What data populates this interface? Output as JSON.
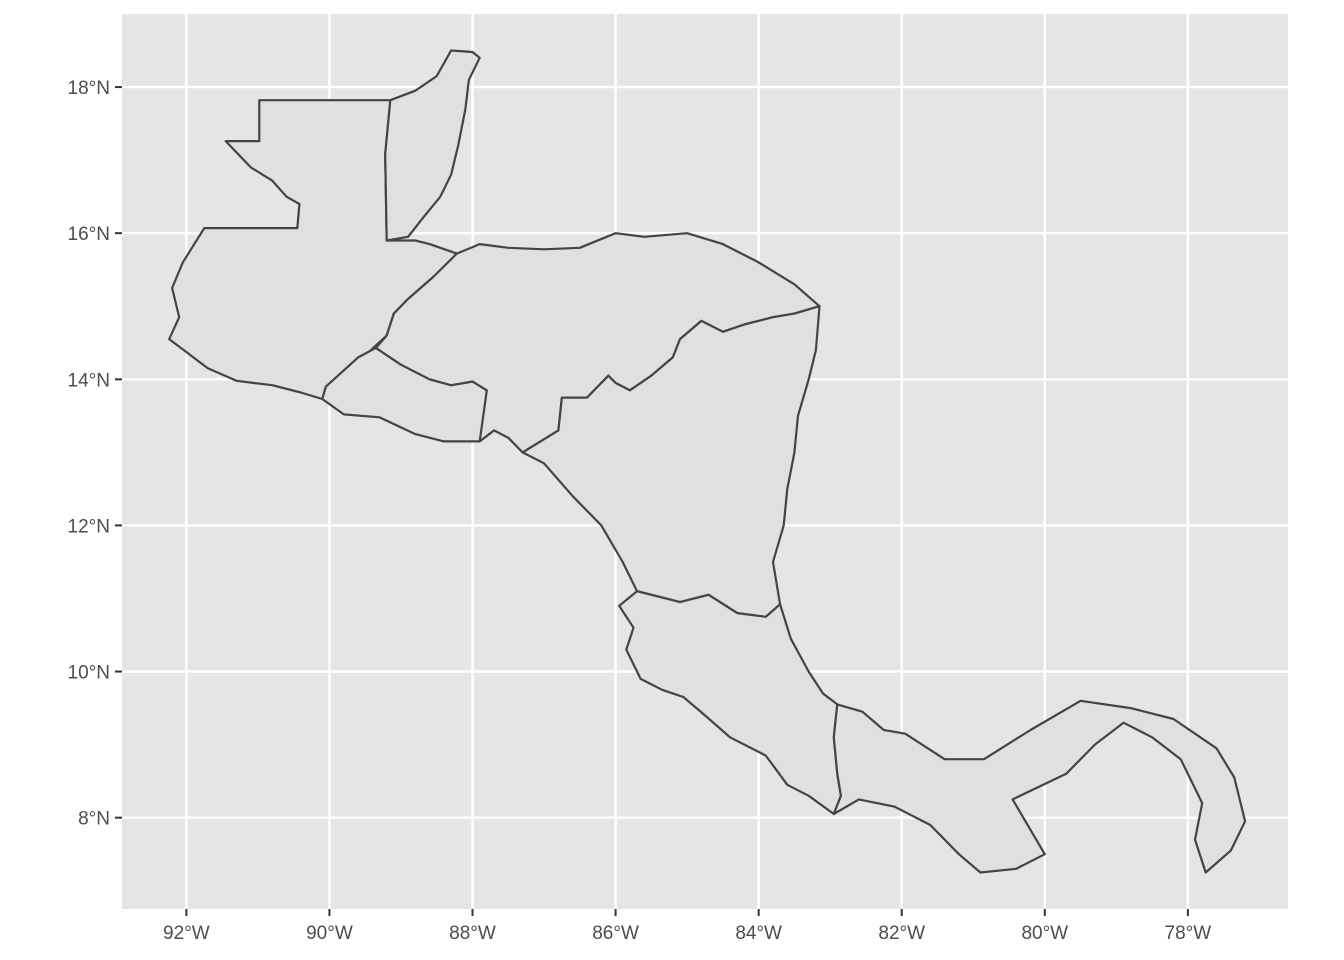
{
  "map": {
    "projection": "equirectangular",
    "lon_range": [
      -92.9,
      -76.6
    ],
    "lat_range": [
      6.75,
      19.0
    ],
    "colors": {
      "panel": "#e5e5e5",
      "grid": "#ffffff",
      "land": "#e0e0e0",
      "border": "#444444",
      "tick_text": "#4d4d4d"
    },
    "x_ticks": [
      {
        "lon": -92,
        "label": "92°W"
      },
      {
        "lon": -90,
        "label": "90°W"
      },
      {
        "lon": -88,
        "label": "88°W"
      },
      {
        "lon": -86,
        "label": "86°W"
      },
      {
        "lon": -84,
        "label": "84°W"
      },
      {
        "lon": -82,
        "label": "82°W"
      },
      {
        "lon": -80,
        "label": "80°W"
      },
      {
        "lon": -78,
        "label": "78°W"
      }
    ],
    "y_ticks": [
      {
        "lat": 18,
        "label": "18°N"
      },
      {
        "lat": 16,
        "label": "16°N"
      },
      {
        "lat": 14,
        "label": "14°N"
      },
      {
        "lat": 12,
        "label": "12°N"
      },
      {
        "lat": 10,
        "label": "10°N"
      },
      {
        "lat": 8,
        "label": "8°N"
      }
    ],
    "countries": [
      {
        "id": "guatemala",
        "outline": [
          [
            -92.24,
            14.55
          ],
          [
            -91.7,
            14.15
          ],
          [
            -91.3,
            13.98
          ],
          [
            -90.8,
            13.92
          ],
          [
            -90.4,
            13.82
          ],
          [
            -90.1,
            13.73
          ],
          [
            -90.05,
            13.9
          ],
          [
            -89.6,
            14.2
          ],
          [
            -89.4,
            14.42
          ],
          [
            -89.2,
            14.6
          ],
          [
            -89.1,
            14.9
          ],
          [
            -88.9,
            15.1
          ],
          [
            -88.55,
            15.4
          ],
          [
            -88.3,
            15.6
          ],
          [
            -88.22,
            15.72
          ],
          [
            -88.6,
            15.85
          ],
          [
            -88.8,
            15.9
          ],
          [
            -89.2,
            15.9
          ],
          [
            -89.22,
            17.08
          ],
          [
            -89.15,
            17.82
          ],
          [
            -90.98,
            17.82
          ],
          [
            -90.98,
            17.26
          ],
          [
            -91.45,
            17.26
          ],
          [
            -91.1,
            16.9
          ],
          [
            -90.8,
            16.72
          ],
          [
            -90.6,
            16.5
          ],
          [
            -90.42,
            16.4
          ],
          [
            -90.45,
            16.07
          ],
          [
            -91.75,
            16.07
          ],
          [
            -92.05,
            15.6
          ],
          [
            -92.2,
            15.25
          ],
          [
            -92.1,
            14.85
          ],
          [
            -92.24,
            14.55
          ]
        ]
      },
      {
        "id": "belize",
        "outline": [
          [
            -89.15,
            17.82
          ],
          [
            -89.22,
            17.08
          ],
          [
            -89.2,
            15.9
          ],
          [
            -88.9,
            15.95
          ],
          [
            -88.7,
            16.2
          ],
          [
            -88.45,
            16.5
          ],
          [
            -88.3,
            16.8
          ],
          [
            -88.2,
            17.2
          ],
          [
            -88.1,
            17.7
          ],
          [
            -88.05,
            18.1
          ],
          [
            -87.9,
            18.4
          ],
          [
            -88.0,
            18.48
          ],
          [
            -88.3,
            18.5
          ],
          [
            -88.5,
            18.15
          ],
          [
            -88.8,
            17.95
          ],
          [
            -89.15,
            17.82
          ]
        ]
      },
      {
        "id": "el-salvador",
        "outline": [
          [
            -90.1,
            13.73
          ],
          [
            -89.8,
            13.52
          ],
          [
            -89.3,
            13.48
          ],
          [
            -88.8,
            13.25
          ],
          [
            -88.4,
            13.15
          ],
          [
            -87.9,
            13.15
          ],
          [
            -87.7,
            13.3
          ],
          [
            -87.8,
            13.85
          ],
          [
            -88.0,
            13.97
          ],
          [
            -88.3,
            13.92
          ],
          [
            -88.6,
            14.0
          ],
          [
            -89.0,
            14.2
          ],
          [
            -89.35,
            14.43
          ],
          [
            -89.6,
            14.3
          ],
          [
            -90.05,
            13.9
          ],
          [
            -90.1,
            13.73
          ]
        ]
      },
      {
        "id": "honduras",
        "outline": [
          [
            -89.35,
            14.43
          ],
          [
            -89.2,
            14.6
          ],
          [
            -89.1,
            14.9
          ],
          [
            -88.9,
            15.1
          ],
          [
            -88.55,
            15.4
          ],
          [
            -88.22,
            15.72
          ],
          [
            -87.9,
            15.85
          ],
          [
            -87.5,
            15.8
          ],
          [
            -87.0,
            15.78
          ],
          [
            -86.5,
            15.8
          ],
          [
            -86.0,
            16.0
          ],
          [
            -85.6,
            15.95
          ],
          [
            -85.0,
            16.0
          ],
          [
            -84.5,
            15.85
          ],
          [
            -84.0,
            15.6
          ],
          [
            -83.5,
            15.3
          ],
          [
            -83.15,
            15.0
          ],
          [
            -83.5,
            14.9
          ],
          [
            -83.8,
            14.85
          ],
          [
            -84.2,
            14.75
          ],
          [
            -84.5,
            14.65
          ],
          [
            -84.8,
            14.8
          ],
          [
            -85.1,
            14.55
          ],
          [
            -85.2,
            14.3
          ],
          [
            -85.5,
            14.05
          ],
          [
            -85.8,
            13.85
          ],
          [
            -86.0,
            13.95
          ],
          [
            -86.1,
            14.05
          ],
          [
            -86.4,
            13.75
          ],
          [
            -86.75,
            13.75
          ],
          [
            -86.8,
            13.3
          ],
          [
            -87.3,
            13.0
          ],
          [
            -87.5,
            13.2
          ],
          [
            -87.7,
            13.3
          ],
          [
            -87.9,
            13.15
          ],
          [
            -87.8,
            13.85
          ],
          [
            -88.0,
            13.97
          ],
          [
            -88.3,
            13.92
          ],
          [
            -88.6,
            14.0
          ],
          [
            -89.0,
            14.2
          ],
          [
            -89.35,
            14.43
          ]
        ]
      },
      {
        "id": "nicaragua",
        "outline": [
          [
            -87.3,
            13.0
          ],
          [
            -87.0,
            12.85
          ],
          [
            -86.6,
            12.4
          ],
          [
            -86.2,
            12.0
          ],
          [
            -85.9,
            11.5
          ],
          [
            -85.7,
            11.1
          ],
          [
            -85.1,
            10.95
          ],
          [
            -84.7,
            11.05
          ],
          [
            -84.3,
            10.8
          ],
          [
            -83.9,
            10.75
          ],
          [
            -83.7,
            10.92
          ],
          [
            -83.8,
            11.5
          ],
          [
            -83.65,
            12.0
          ],
          [
            -83.6,
            12.5
          ],
          [
            -83.5,
            13.0
          ],
          [
            -83.45,
            13.5
          ],
          [
            -83.3,
            14.0
          ],
          [
            -83.2,
            14.4
          ],
          [
            -83.15,
            15.0
          ],
          [
            -83.5,
            14.9
          ],
          [
            -83.8,
            14.85
          ],
          [
            -84.2,
            14.75
          ],
          [
            -84.5,
            14.65
          ],
          [
            -84.8,
            14.8
          ],
          [
            -85.1,
            14.55
          ],
          [
            -85.2,
            14.3
          ],
          [
            -85.5,
            14.05
          ],
          [
            -85.8,
            13.85
          ],
          [
            -86.0,
            13.95
          ],
          [
            -86.1,
            14.05
          ],
          [
            -86.4,
            13.75
          ],
          [
            -86.75,
            13.75
          ],
          [
            -86.8,
            13.3
          ],
          [
            -87.3,
            13.0
          ]
        ]
      },
      {
        "id": "costa-rica",
        "outline": [
          [
            -85.7,
            11.1
          ],
          [
            -85.95,
            10.9
          ],
          [
            -85.75,
            10.6
          ],
          [
            -85.85,
            10.3
          ],
          [
            -85.65,
            9.9
          ],
          [
            -85.35,
            9.75
          ],
          [
            -85.05,
            9.65
          ],
          [
            -84.75,
            9.4
          ],
          [
            -84.4,
            9.1
          ],
          [
            -83.9,
            8.85
          ],
          [
            -83.6,
            8.45
          ],
          [
            -83.3,
            8.3
          ],
          [
            -82.95,
            8.05
          ],
          [
            -82.85,
            8.3
          ],
          [
            -82.9,
            8.6
          ],
          [
            -82.95,
            9.1
          ],
          [
            -82.9,
            9.55
          ],
          [
            -83.1,
            9.7
          ],
          [
            -83.3,
            10.0
          ],
          [
            -83.55,
            10.45
          ],
          [
            -83.7,
            10.92
          ],
          [
            -83.9,
            10.75
          ],
          [
            -84.3,
            10.8
          ],
          [
            -84.7,
            11.05
          ],
          [
            -85.1,
            10.95
          ],
          [
            -85.7,
            11.1
          ]
        ]
      },
      {
        "id": "panama",
        "outline": [
          [
            -82.95,
            8.05
          ],
          [
            -82.6,
            8.25
          ],
          [
            -82.1,
            8.15
          ],
          [
            -81.6,
            7.9
          ],
          [
            -81.2,
            7.5
          ],
          [
            -80.9,
            7.25
          ],
          [
            -80.4,
            7.3
          ],
          [
            -80.0,
            7.5
          ],
          [
            -80.45,
            8.25
          ],
          [
            -79.7,
            8.6
          ],
          [
            -79.3,
            9.0
          ],
          [
            -78.9,
            9.3
          ],
          [
            -78.5,
            9.1
          ],
          [
            -78.1,
            8.8
          ],
          [
            -77.8,
            8.2
          ],
          [
            -77.9,
            7.7
          ],
          [
            -77.75,
            7.25
          ],
          [
            -77.4,
            7.55
          ],
          [
            -77.2,
            7.95
          ],
          [
            -77.35,
            8.55
          ],
          [
            -77.6,
            8.95
          ],
          [
            -78.2,
            9.35
          ],
          [
            -78.8,
            9.5
          ],
          [
            -79.5,
            9.6
          ],
          [
            -80.2,
            9.2
          ],
          [
            -80.85,
            8.8
          ],
          [
            -81.4,
            8.8
          ],
          [
            -81.95,
            9.15
          ],
          [
            -82.25,
            9.2
          ],
          [
            -82.55,
            9.45
          ],
          [
            -82.9,
            9.55
          ],
          [
            -82.95,
            9.1
          ],
          [
            -82.9,
            8.6
          ],
          [
            -82.85,
            8.3
          ],
          [
            -82.95,
            8.05
          ]
        ]
      }
    ]
  }
}
